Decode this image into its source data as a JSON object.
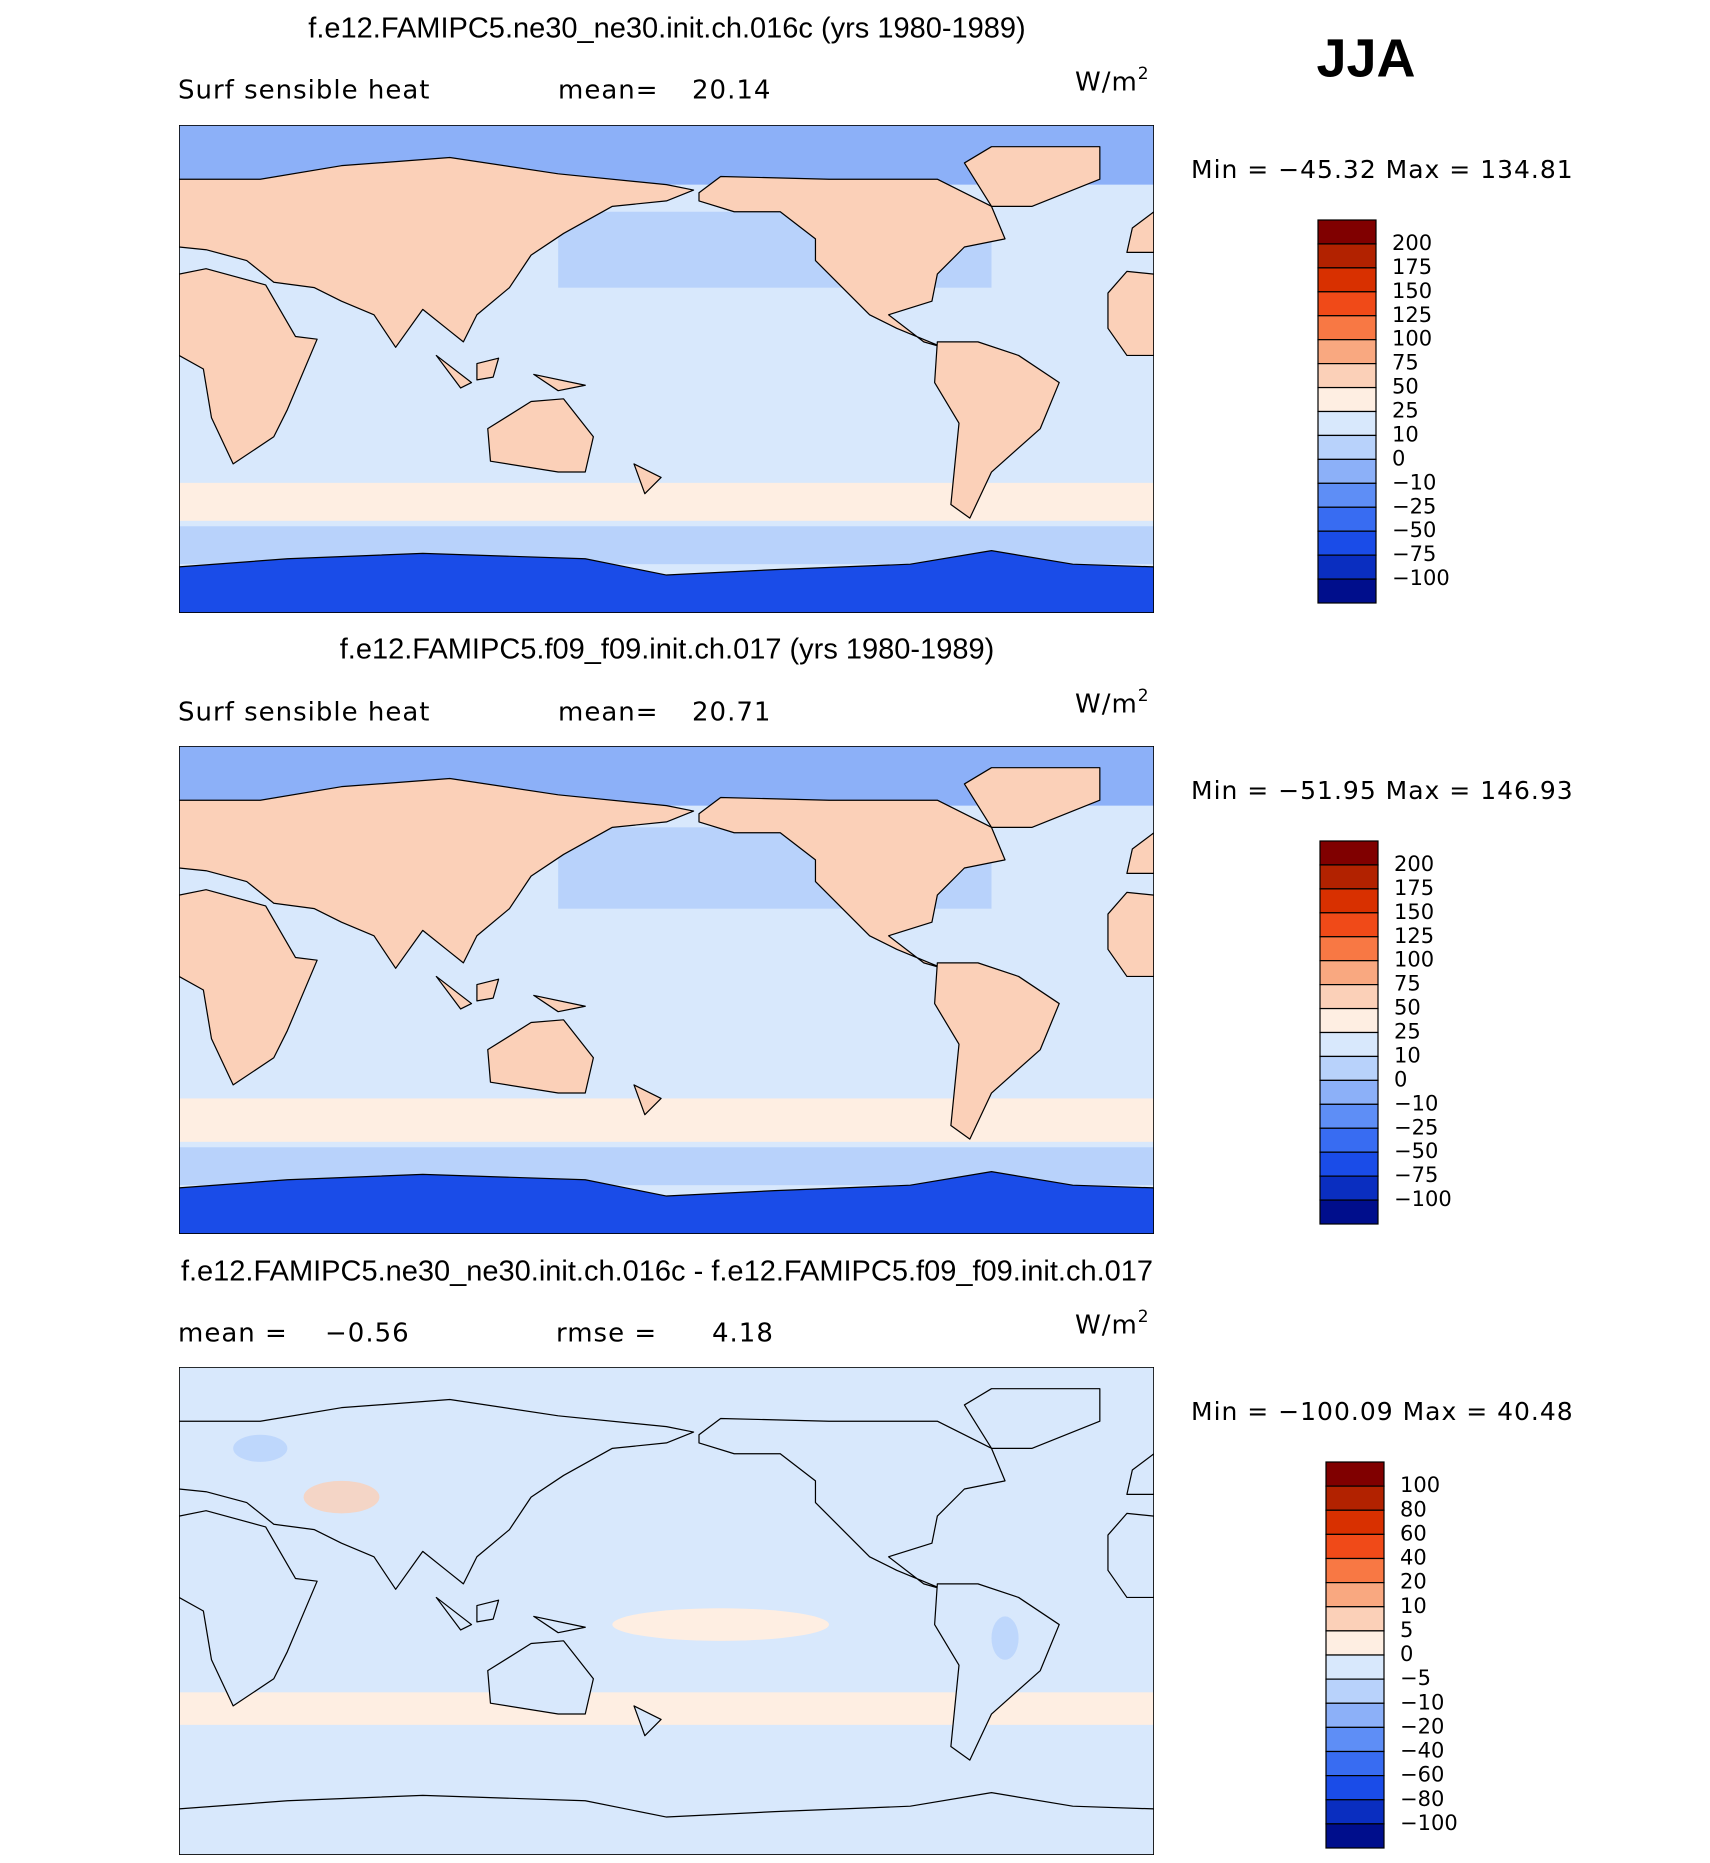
{
  "header": {
    "season": "JJA"
  },
  "panels": [
    {
      "title": "f.e12.FAMIPC5.ne30_ne30.init.ch.016c (yrs 1980-1989)",
      "field": "Surf sensible heat",
      "mean_label": "mean=",
      "mean": "20.14",
      "units": "W/m",
      "units_sup": "2",
      "range": "Min = −45.32 Max = 134.81",
      "colorbar": {
        "labels": [
          "200",
          "175",
          "150",
          "125",
          "100",
          "75",
          "50",
          "25",
          "10",
          "0",
          "−10",
          "−25",
          "−50",
          "−75",
          "−100"
        ],
        "colors": [
          "#800000",
          "#b22200",
          "#d83000",
          "#f04a18",
          "#f87844",
          "#f9a880",
          "#fbd0b8",
          "#feeee2",
          "#d8e8fc",
          "#b8d2fb",
          "#8cb0f8",
          "#5e8ef6",
          "#386cf2",
          "#1a4ce8",
          "#0a2ec0",
          "#000e8c"
        ]
      }
    },
    {
      "title": "f.e12.FAMIPC5.f09_f09.init.ch.017 (yrs 1980-1989)",
      "field": "Surf sensible heat",
      "mean_label": "mean=",
      "mean": "20.71",
      "units": "W/m",
      "units_sup": "2",
      "range": "Min = −51.95 Max = 146.93",
      "colorbar": {
        "labels": [
          "200",
          "175",
          "150",
          "125",
          "100",
          "75",
          "50",
          "25",
          "10",
          "0",
          "−10",
          "−25",
          "−50",
          "−75",
          "−100"
        ],
        "colors": [
          "#800000",
          "#b22200",
          "#d83000",
          "#f04a18",
          "#f87844",
          "#f9a880",
          "#fbd0b8",
          "#feeee2",
          "#d8e8fc",
          "#b8d2fb",
          "#8cb0f8",
          "#5e8ef6",
          "#386cf2",
          "#1a4ce8",
          "#0a2ec0",
          "#000e8c"
        ]
      }
    },
    {
      "title": "f.e12.FAMIPC5.ne30_ne30.init.ch.016c - f.e12.FAMIPC5.f09_f09.init.ch.017",
      "mean_label": "mean =",
      "mean": "−0.56",
      "rmse_label": "rmse =",
      "rmse": "4.18",
      "units": "W/m",
      "units_sup": "2",
      "range": "Min = −100.09 Max = 40.48",
      "colorbar": {
        "labels": [
          "100",
          "80",
          "60",
          "40",
          "20",
          "10",
          "5",
          "0",
          "−5",
          "−10",
          "−20",
          "−40",
          "−60",
          "−80",
          "−100"
        ],
        "colors": [
          "#800000",
          "#b22200",
          "#d83000",
          "#f04a18",
          "#f87844",
          "#f9a880",
          "#fbd0b8",
          "#feeee2",
          "#d8e8fc",
          "#b8d2fb",
          "#8cb0f8",
          "#5e8ef6",
          "#386cf2",
          "#1a4ce8",
          "#0a2ec0",
          "#000e8c"
        ]
      }
    }
  ]
}
